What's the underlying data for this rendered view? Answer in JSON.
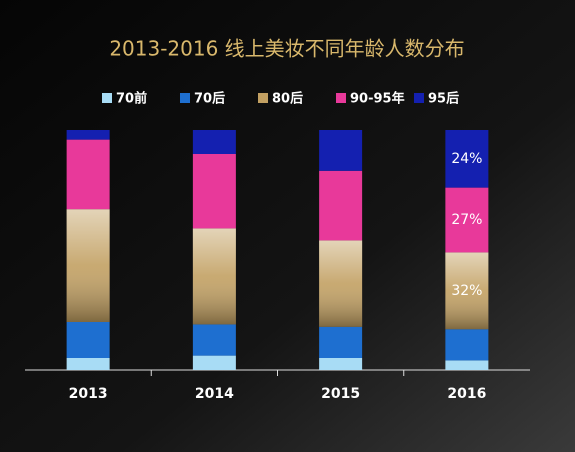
{
  "chart_data": {
    "type": "stacked-bar",
    "title": "2013-2016 线上美妆不同年龄人数分布",
    "categories": [
      "2013",
      "2014",
      "2015",
      "2016"
    ],
    "series": [
      {
        "name": "70前",
        "color": "#a8dcf5",
        "values": [
          5,
          6,
          5,
          4
        ]
      },
      {
        "name": "70后",
        "color": "#1e6fd0",
        "values": [
          15,
          13,
          13,
          13
        ]
      },
      {
        "name": "80后",
        "color": "#c2a062",
        "values": [
          47,
          40,
          36,
          32
        ],
        "value_labels": [
          null,
          null,
          null,
          "32%"
        ]
      },
      {
        "name": "90-95年",
        "color": "#e8399a",
        "values": [
          29,
          31,
          29,
          27
        ],
        "value_labels": [
          null,
          null,
          null,
          "27%"
        ]
      },
      {
        "name": "95后",
        "color": "#1420b0",
        "values": [
          4,
          10,
          17,
          24
        ],
        "value_labels": [
          null,
          null,
          null,
          "24%"
        ]
      }
    ],
    "ylim": [
      0,
      100
    ]
  }
}
